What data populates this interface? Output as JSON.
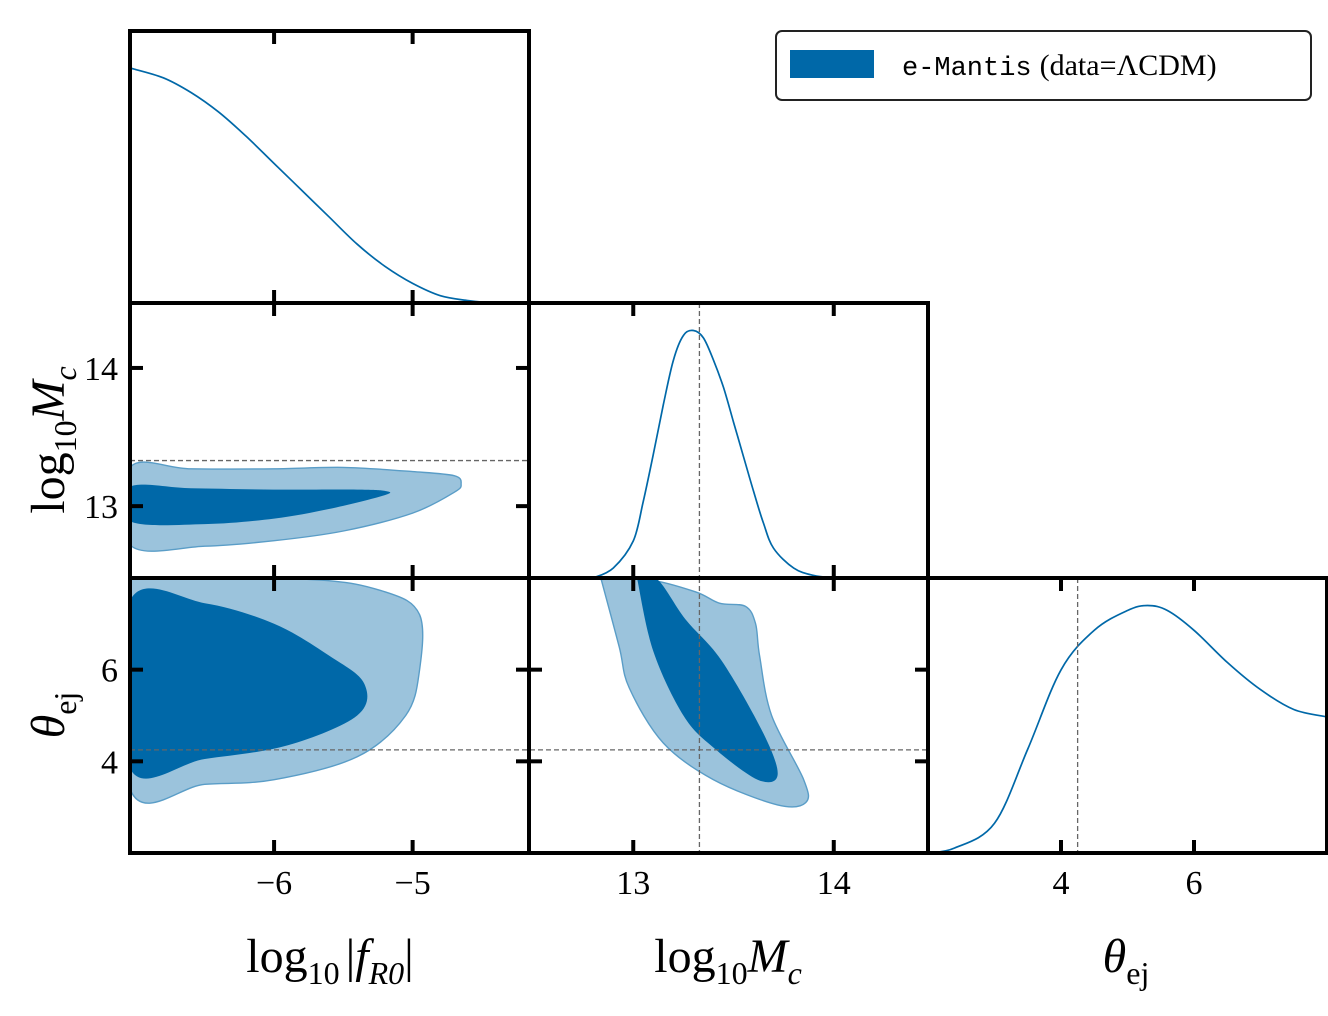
{
  "chart_data": {
    "type": "corner",
    "parameters": [
      {
        "key": "log10_fR0",
        "range": [
          -7.04,
          -4.16
        ],
        "ticks": [
          -6,
          -5
        ],
        "tick_labels": [
          "−6",
          "−5"
        ]
      },
      {
        "key": "log10_Mc",
        "range": [
          12.48,
          14.47
        ],
        "ticks": [
          13,
          14
        ],
        "tick_labels": [
          "13",
          "14"
        ],
        "truth": 13.33
      },
      {
        "key": "theta_ej",
        "range": [
          2.0,
          8.0
        ],
        "ticks": [
          4,
          6
        ],
        "tick_labels": [
          "4",
          "6"
        ],
        "truth": 4.25
      }
    ],
    "axis_labels": {
      "log10_fR0": {
        "main": "log",
        "sub": "10",
        "rest_prefix": "|",
        "rest_italic": "f",
        "rest_sub": "R0",
        "rest_suffix": "|"
      },
      "log10_Mc": {
        "main": "log",
        "sub": "10",
        "italic": "M",
        "italic_sub": "c"
      },
      "theta_ej": {
        "symbol": "θ",
        "sub": "ej"
      }
    },
    "series": [
      {
        "name_mono": "e-Mantis",
        "name_rest": "(data=ΛCDM)",
        "fill_inner": "#0068a8",
        "fill_outer": "#9bc3dc",
        "line_color": "#0068a8",
        "edge_color": "#5a9dc7",
        "marginals": {
          "log10_fR0": [
            [
              -7.04,
              0.96
            ],
            [
              -6.8,
              0.92
            ],
            [
              -6.6,
              0.86
            ],
            [
              -6.4,
              0.78
            ],
            [
              -6.2,
              0.68
            ],
            [
              -6.0,
              0.57
            ],
            [
              -5.8,
              0.46
            ],
            [
              -5.6,
              0.35
            ],
            [
              -5.4,
              0.24
            ],
            [
              -5.2,
              0.15
            ],
            [
              -5.0,
              0.08
            ],
            [
              -4.8,
              0.03
            ],
            [
              -4.6,
              0.01
            ],
            [
              -4.4,
              0.0
            ],
            [
              -4.16,
              0.0
            ]
          ],
          "log10_Mc": [
            [
              12.8,
              0.0
            ],
            [
              12.9,
              0.04
            ],
            [
              13.0,
              0.15
            ],
            [
              13.05,
              0.31
            ],
            [
              13.1,
              0.5
            ],
            [
              13.15,
              0.7
            ],
            [
              13.2,
              0.88
            ],
            [
              13.25,
              0.98
            ],
            [
              13.3,
              1.0
            ],
            [
              13.35,
              0.97
            ],
            [
              13.4,
              0.88
            ],
            [
              13.45,
              0.77
            ],
            [
              13.5,
              0.63
            ],
            [
              13.55,
              0.49
            ],
            [
              13.6,
              0.35
            ],
            [
              13.65,
              0.22
            ],
            [
              13.7,
              0.12
            ],
            [
              13.8,
              0.04
            ],
            [
              13.9,
              0.01
            ],
            [
              14.0,
              0.0
            ]
          ],
          "theta_ej": [
            [
              2.0,
              0.0
            ],
            [
              2.4,
              0.02
            ],
            [
              3.0,
              0.12
            ],
            [
              3.5,
              0.42
            ],
            [
              4.0,
              0.74
            ],
            [
              4.5,
              0.9
            ],
            [
              5.0,
              0.98
            ],
            [
              5.3,
              1.0
            ],
            [
              5.6,
              0.98
            ],
            [
              6.0,
              0.9
            ],
            [
              6.5,
              0.77
            ],
            [
              7.0,
              0.66
            ],
            [
              7.5,
              0.58
            ],
            [
              8.0,
              0.55
            ]
          ]
        },
        "contours": {
          "log10_Mc|log10_fR0": {
            "c95": [
              [
                -7.04,
                13.28
              ],
              [
                -6.6,
                13.27
              ],
              [
                -6.0,
                13.27
              ],
              [
                -5.5,
                13.28
              ],
              [
                -5.0,
                13.25
              ],
              [
                -4.7,
                13.22
              ],
              [
                -4.65,
                13.16
              ],
              [
                -4.7,
                13.1
              ],
              [
                -5.0,
                12.95
              ],
              [
                -5.5,
                12.82
              ],
              [
                -6.0,
                12.75
              ],
              [
                -6.5,
                12.71
              ],
              [
                -7.04,
                12.72
              ]
            ],
            "c68": [
              [
                -7.04,
                13.14
              ],
              [
                -6.6,
                13.13
              ],
              [
                -6.0,
                13.12
              ],
              [
                -5.4,
                13.12
              ],
              [
                -5.2,
                13.11
              ],
              [
                -5.2,
                13.08
              ],
              [
                -5.6,
                12.98
              ],
              [
                -6.0,
                12.91
              ],
              [
                -6.5,
                12.87
              ],
              [
                -7.04,
                12.89
              ]
            ]
          },
          "theta_ej|log10_fR0": {
            "c95": [
              [
                -7.04,
                7.97
              ],
              [
                -5.75,
                7.97
              ],
              [
                -5.2,
                7.7
              ],
              [
                -4.95,
                7.2
              ],
              [
                -4.95,
                6.0
              ],
              [
                -5.05,
                5.0
              ],
              [
                -5.4,
                4.1
              ],
              [
                -6.0,
                3.6
              ],
              [
                -6.5,
                3.5
              ],
              [
                -7.04,
                3.4
              ]
            ],
            "c68": [
              [
                -7.04,
                7.5
              ],
              [
                -6.5,
                7.45
              ],
              [
                -6.0,
                7.0
              ],
              [
                -5.6,
                6.3
              ],
              [
                -5.35,
                5.7
              ],
              [
                -5.4,
                5.0
              ],
              [
                -5.9,
                4.35
              ],
              [
                -6.5,
                4.05
              ],
              [
                -7.04,
                3.85
              ]
            ]
          },
          "theta_ej|log10_Mc": {
            "c95": [
              [
                12.84,
                7.97
              ],
              [
                13.07,
                7.97
              ],
              [
                13.31,
                7.7
              ],
              [
                13.43,
                7.45
              ],
              [
                13.56,
                7.38
              ],
              [
                13.61,
                7.0
              ],
              [
                13.63,
                6.3
              ],
              [
                13.69,
                5.0
              ],
              [
                13.85,
                3.6
              ],
              [
                13.86,
                3.1
              ],
              [
                13.72,
                3.05
              ],
              [
                13.4,
                3.6
              ],
              [
                13.15,
                4.4
              ],
              [
                12.98,
                5.6
              ],
              [
                12.93,
                6.5
              ],
              [
                12.84,
                7.97
              ]
            ],
            "c68": [
              [
                13.02,
                7.97
              ],
              [
                13.12,
                7.97
              ],
              [
                13.26,
                7.1
              ],
              [
                13.44,
                6.2
              ],
              [
                13.65,
                4.6
              ],
              [
                13.72,
                3.7
              ],
              [
                13.62,
                3.6
              ],
              [
                13.4,
                4.3
              ],
              [
                13.25,
                5.0
              ],
              [
                13.1,
                6.4
              ],
              [
                13.02,
                7.97
              ]
            ]
          }
        }
      }
    ]
  }
}
